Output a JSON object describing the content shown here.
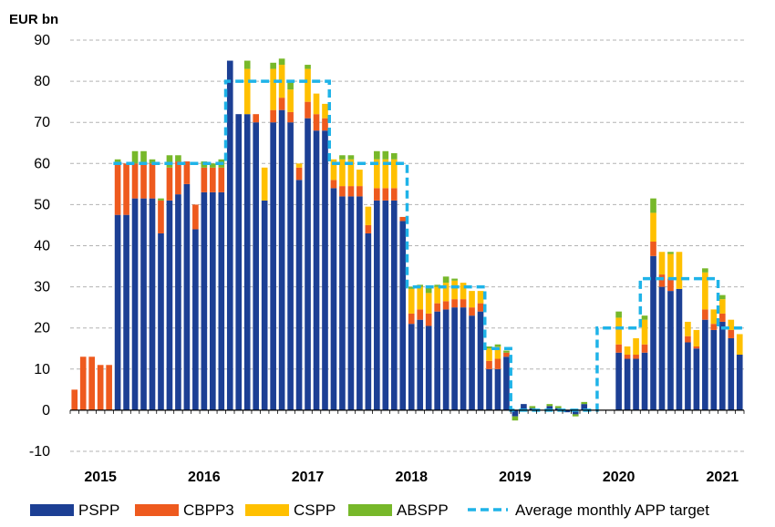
{
  "chart_data": {
    "type": "bar",
    "stacked": true,
    "ylabel": "EUR bn",
    "ylim": [
      -10,
      90
    ],
    "yticks": [
      -10,
      0,
      10,
      20,
      30,
      40,
      50,
      60,
      70,
      80,
      90
    ],
    "grid": true,
    "legend": "bottom",
    "year_labels": [
      "2015",
      "2016",
      "2017",
      "2018",
      "2019",
      "2020",
      "2021"
    ],
    "x_start": "2014-10",
    "x_end": "2021-01",
    "series": [
      {
        "name": "PSPP",
        "color": "#1c3f94",
        "values": [
          0,
          0,
          0,
          0,
          0,
          47.5,
          47.5,
          51.5,
          51.5,
          51.5,
          43,
          51,
          52.5,
          55,
          44,
          53,
          53,
          53,
          85,
          72,
          72,
          70,
          51,
          70,
          73,
          70,
          56,
          71,
          68,
          68,
          54,
          52,
          52,
          52,
          43,
          51,
          51,
          51,
          46,
          21,
          22,
          20.5,
          24,
          24.5,
          25,
          25,
          23,
          24,
          10,
          10,
          13,
          -1.5,
          1.5,
          0.5,
          0,
          1,
          0.5,
          -0.5,
          -1,
          1.5,
          0,
          0,
          0,
          14,
          12.5,
          12.5,
          14,
          37.5,
          30,
          29,
          29.5,
          16.5,
          15,
          22,
          19.5,
          21.5,
          17.5,
          13.5
        ]
      },
      {
        "name": "CBPP3",
        "color": "#ee5a1e",
        "values": [
          5,
          13,
          13,
          11,
          11,
          12.5,
          12.5,
          8.5,
          8.5,
          8.5,
          8,
          8,
          8,
          5.5,
          6,
          6,
          6,
          6,
          0,
          0,
          0,
          2,
          0,
          3,
          3,
          2.5,
          3,
          4,
          4,
          3,
          2,
          2.5,
          2.5,
          2.5,
          2,
          3,
          3,
          3,
          1,
          2.5,
          2.5,
          3,
          2,
          2,
          2,
          2,
          2,
          2,
          2,
          2.5,
          1,
          0,
          0,
          0,
          0,
          0,
          0,
          0,
          0,
          0,
          0,
          0,
          0,
          2,
          1,
          1,
          2,
          3.5,
          3,
          3,
          0,
          1.5,
          0.5,
          2.5,
          1.5,
          2,
          2,
          0
        ]
      },
      {
        "name": "CSPP",
        "color": "#ffc000",
        "values": [
          0,
          0,
          0,
          0,
          0,
          0,
          0,
          0,
          0,
          0,
          0,
          0,
          0,
          0,
          0,
          0,
          0,
          0,
          0,
          0,
          11,
          0,
          8,
          10,
          8,
          5.5,
          1,
          8,
          5,
          3.5,
          5,
          6.5,
          6.5,
          4,
          4.5,
          7,
          7,
          7,
          0,
          6,
          5.5,
          5,
          4,
          4.5,
          4.5,
          4,
          4,
          3,
          3,
          3,
          0,
          0,
          0,
          0,
          0,
          0,
          0,
          0,
          0,
          0,
          0,
          0,
          0,
          6.5,
          2,
          4,
          6,
          7,
          5.5,
          6,
          9,
          3.5,
          4,
          9,
          3.5,
          3.5,
          2.5,
          5
        ]
      },
      {
        "name": "ABSPP",
        "color": "#77b82a",
        "values": [
          0,
          0,
          0,
          0,
          0,
          1,
          0,
          3,
          3,
          1,
          0.5,
          3,
          1.5,
          0,
          0,
          1.5,
          1,
          2,
          0,
          0,
          2,
          0,
          0,
          1.5,
          1.5,
          2,
          0,
          1,
          0,
          0,
          0,
          1,
          1,
          0,
          0,
          2,
          2,
          1.5,
          0,
          0.5,
          0.5,
          1.5,
          0.5,
          1.5,
          0.5,
          0,
          0,
          0,
          0.5,
          0.5,
          0.5,
          -1,
          0,
          0.5,
          0,
          0.5,
          0.5,
          0,
          -0.5,
          0.5,
          0,
          0,
          0,
          1.5,
          0,
          0,
          1,
          3.5,
          0,
          0.5,
          0,
          0,
          0,
          1,
          0,
          1,
          0,
          0
        ]
      }
    ],
    "target": {
      "name": "Average monthly APP target",
      "color": "#1fb3e8",
      "steps": [
        {
          "from": 5,
          "to": 18,
          "value": 60
        },
        {
          "from": 18,
          "to": 30,
          "value": 80
        },
        {
          "from": 30,
          "to": 39,
          "value": 60
        },
        {
          "from": 39,
          "to": 48,
          "value": 30
        },
        {
          "from": 48,
          "to": 51,
          "value": 15
        },
        {
          "from": 51,
          "to": 61,
          "value": 0
        },
        {
          "from": 61,
          "to": 66,
          "value": 20
        },
        {
          "from": 66,
          "to": 75,
          "value": 32
        },
        {
          "from": 75,
          "to": 78,
          "value": 20
        }
      ]
    }
  }
}
